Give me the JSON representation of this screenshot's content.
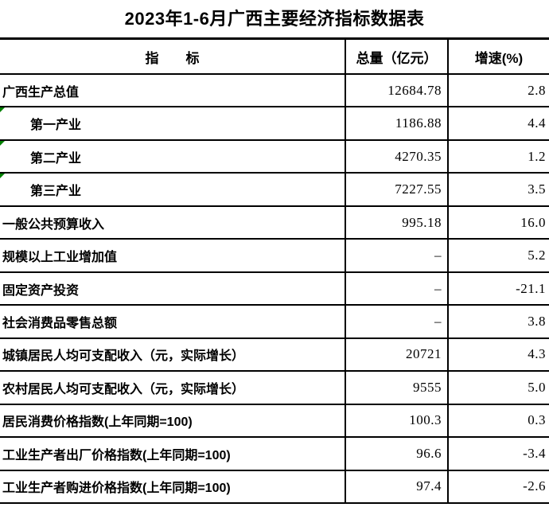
{
  "title": "2023年1-6月广西主要经济指标数据表",
  "colors": {
    "border": "#000000",
    "text": "#000000",
    "marker_green": "#008000",
    "background": "#ffffff"
  },
  "icons": {
    "corner_marker": "green-corner-triangle"
  },
  "table": {
    "columns": [
      {
        "key": "indicator",
        "label": "指　　标"
      },
      {
        "key": "total",
        "label": "总量（亿元）"
      },
      {
        "key": "growth",
        "label": "增速(%)"
      }
    ],
    "rows": [
      {
        "indicator": "广西生产总值",
        "total": "12684.78",
        "growth": "2.8",
        "indent": false,
        "marker": false
      },
      {
        "indicator": "第一产业",
        "total": "1186.88",
        "growth": "4.4",
        "indent": true,
        "marker": true
      },
      {
        "indicator": "第二产业",
        "total": "4270.35",
        "growth": "1.2",
        "indent": true,
        "marker": true
      },
      {
        "indicator": "第三产业",
        "total": "7227.55",
        "growth": "3.5",
        "indent": true,
        "marker": true
      },
      {
        "indicator": "一般公共预算收入",
        "total": "995.18",
        "growth": "16.0",
        "indent": false,
        "marker": false
      },
      {
        "indicator": "规模以上工业增加值",
        "total": "–",
        "growth": "5.2",
        "indent": false,
        "marker": false
      },
      {
        "indicator": "固定资产投资",
        "total": "–",
        "growth": "-21.1",
        "indent": false,
        "marker": false
      },
      {
        "indicator": "社会消费品零售总额",
        "total": "–",
        "growth": "3.8",
        "indent": false,
        "marker": false
      },
      {
        "indicator": "城镇居民人均可支配收入（元，实际增长）",
        "total": "20721",
        "growth": "4.3",
        "indent": false,
        "marker": false
      },
      {
        "indicator": "农村居民人均可支配收入（元，实际增长）",
        "total": "9555",
        "growth": "5.0",
        "indent": false,
        "marker": false
      },
      {
        "indicator": "居民消费价格指数(上年同期=100)",
        "total": "100.3",
        "growth": "0.3",
        "indent": false,
        "marker": false
      },
      {
        "indicator": "工业生产者出厂价格指数(上年同期=100)",
        "total": "96.6",
        "growth": "-3.4",
        "indent": false,
        "marker": false
      },
      {
        "indicator": "工业生产者购进价格指数(上年同期=100)",
        "total": "97.4",
        "growth": "-2.6",
        "indent": false,
        "marker": false
      }
    ]
  }
}
